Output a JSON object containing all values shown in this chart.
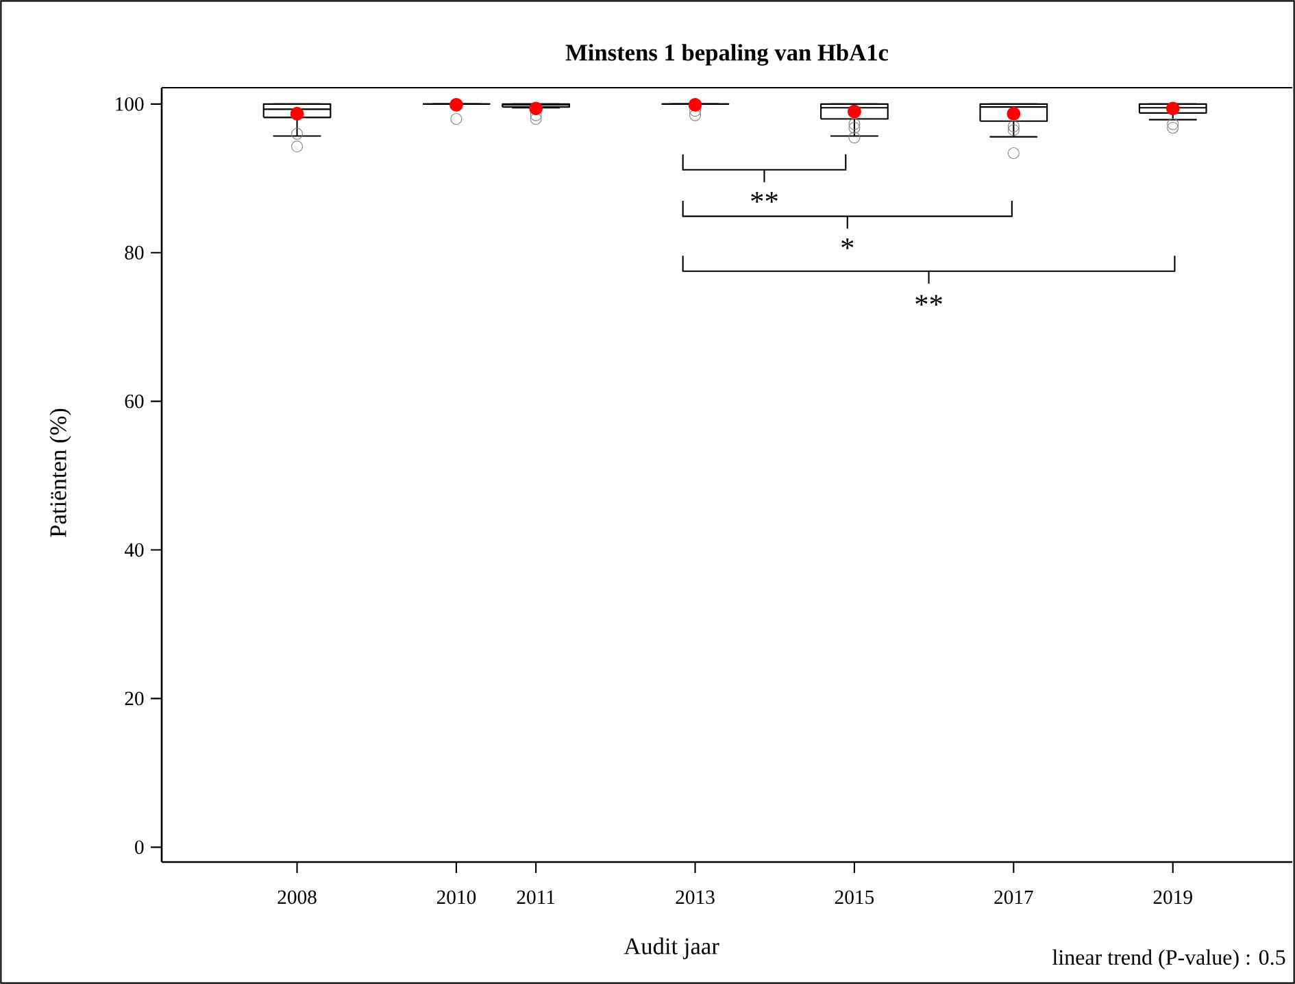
{
  "chart_data": {
    "type": "box",
    "title": "Minstens 1 bepaling van HbA1c",
    "xlabel": "Audit jaar",
    "ylabel": "Patiënten (%)",
    "x": [
      2008,
      2010,
      2011,
      2013,
      2015,
      2017,
      2019
    ],
    "boxes": [
      {
        "low": 95.7,
        "q1": 98.2,
        "median": 99.3,
        "q3": 100,
        "high": 100,
        "mean": 98.7,
        "outliers": [
          96.0,
          94.3
        ]
      },
      {
        "low": 100,
        "q1": 100,
        "median": 100,
        "q3": 100,
        "high": 100,
        "mean": 99.9,
        "outliers": [
          98.0
        ]
      },
      {
        "low": 99.5,
        "q1": 99.6,
        "median": 99.9,
        "q3": 100,
        "high": 100,
        "mean": 99.4,
        "outliers": [
          98.5,
          98.0
        ]
      },
      {
        "low": 100,
        "q1": 100,
        "median": 100,
        "q3": 100,
        "high": 100,
        "mean": 99.9,
        "outliers": [
          99.1,
          98.5
        ]
      },
      {
        "low": 95.7,
        "q1": 98.0,
        "median": 99.5,
        "q3": 100,
        "high": 100,
        "mean": 99.0,
        "outliers": [
          97.3,
          96.8,
          95.5
        ]
      },
      {
        "low": 95.6,
        "q1": 97.7,
        "median": 99.6,
        "q3": 100,
        "high": 100,
        "mean": 98.7,
        "outliers": [
          97.0,
          96.5,
          93.4
        ]
      },
      {
        "low": 97.9,
        "q1": 98.8,
        "median": 99.5,
        "q3": 100,
        "high": 100,
        "mean": 99.4,
        "outliers": [
          97.3,
          96.8
        ]
      }
    ],
    "xlim": [
      2006.3,
      2020.5
    ],
    "xticks": [
      2008,
      2010,
      2011,
      2013,
      2015,
      2017,
      2019
    ],
    "ylim": [
      -2,
      102.2
    ],
    "yticks": [
      0,
      20,
      40,
      60,
      80,
      100
    ],
    "annotations": [
      "**",
      "*",
      "**",
      "linear trend (P-value) : 0.5"
    ],
    "grid": false
  }
}
